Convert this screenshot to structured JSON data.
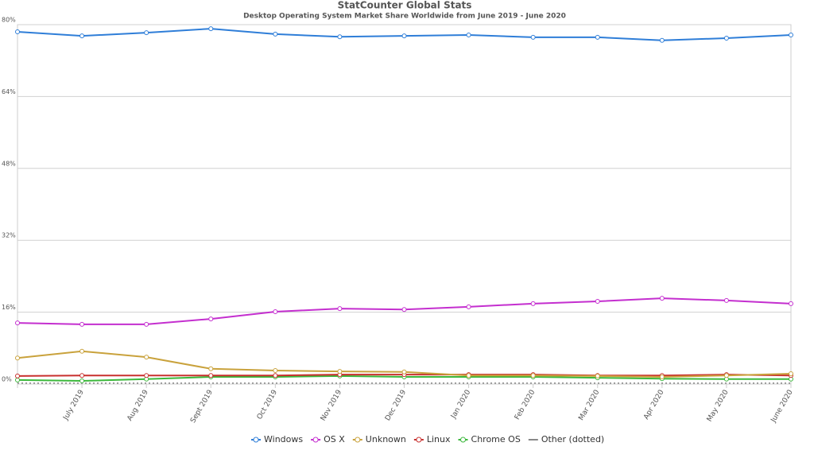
{
  "chart_data": {
    "type": "line",
    "title": "StatCounter Global Stats",
    "subtitle": "Desktop Operating System Market Share Worldwide from June 2019 - June 2020",
    "categories": [
      null,
      "July 2019",
      "Aug 2019",
      "Sept 2019",
      "Oct 2019",
      "Nov 2019",
      "Dec 2019",
      "Jan 2020",
      "Feb 2020",
      "Mar 2020",
      "Apr 2020",
      "May 2020",
      "June 2020"
    ],
    "series": [
      {
        "name": "Windows",
        "color": "#2f7ed8",
        "values": [
          78.4,
          77.5,
          78.2,
          79.1,
          77.9,
          77.3,
          77.5,
          77.7,
          77.2,
          77.2,
          76.5,
          77.0,
          77.7
        ]
      },
      {
        "name": "OS X",
        "color": "#c42fcf",
        "values": [
          13.6,
          13.3,
          13.3,
          14.5,
          16.1,
          16.8,
          16.6,
          17.2,
          17.9,
          18.4,
          19.1,
          18.6,
          17.9
        ]
      },
      {
        "name": "Unknown",
        "color": "#c9a23c",
        "values": [
          5.8,
          7.3,
          6.0,
          3.4,
          3.0,
          2.8,
          2.7,
          1.9,
          1.9,
          1.8,
          1.6,
          1.9,
          2.3
        ]
      },
      {
        "name": "Linux",
        "color": "#c8302e",
        "values": [
          1.8,
          1.9,
          1.9,
          1.9,
          1.9,
          2.1,
          2.1,
          2.1,
          2.1,
          1.9,
          1.9,
          2.1,
          1.9
        ]
      },
      {
        "name": "Chrome OS",
        "color": "#3cb83c",
        "values": [
          0.9,
          0.7,
          1.1,
          1.6,
          1.6,
          1.8,
          1.6,
          1.6,
          1.6,
          1.4,
          1.2,
          1.1,
          1.1
        ]
      },
      {
        "name": "Other (dotted)",
        "color": "#888888",
        "dash": "dotted",
        "values": [
          0.2,
          0.2,
          0.2,
          0.2,
          0.2,
          0.2,
          0.2,
          0.2,
          0.2,
          0.2,
          0.2,
          0.2,
          0.2
        ]
      }
    ],
    "ylim": [
      0,
      80
    ],
    "yticks": [
      {
        "value": 0,
        "label": "0%"
      },
      {
        "value": 16,
        "label": "16%"
      },
      {
        "value": 32,
        "label": "32%"
      },
      {
        "value": 48,
        "label": "48%"
      },
      {
        "value": 64,
        "label": "64%"
      },
      {
        "value": 80,
        "label": "80%"
      }
    ],
    "grid": true
  }
}
